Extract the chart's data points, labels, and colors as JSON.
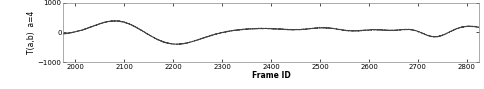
{
  "xlim": [
    1975,
    2825
  ],
  "ylim": [
    -1000,
    1000
  ],
  "xticks": [
    2000,
    2100,
    2200,
    2300,
    2400,
    2500,
    2600,
    2700,
    2800
  ],
  "yticks": [
    -1000,
    0,
    1000
  ],
  "xlabel": "Frame ID",
  "ylabel": "T(a,b)  a=4",
  "line_color": "#444444",
  "line_width": 0.7,
  "bg_color": "#ffffff",
  "figsize": [
    4.84,
    0.89
  ],
  "dpi": 100,
  "label_fontsize": 5.5,
  "tick_fontsize": 5.0
}
